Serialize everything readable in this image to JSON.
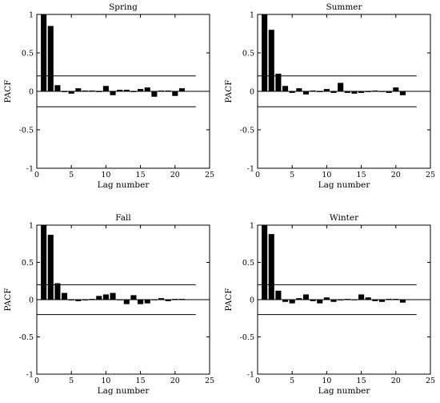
{
  "chart_data": [
    {
      "type": "bar",
      "title": "Spring",
      "xlabel": "Lag number",
      "ylabel": "PACF",
      "xlim": [
        0,
        25
      ],
      "ylim": [
        -1,
        1
      ],
      "xticks": [
        "0",
        "5",
        "10",
        "15",
        "20",
        "25"
      ],
      "yticks": [
        "1",
        "0.5",
        "0",
        "-0.5",
        "-1"
      ],
      "confidence_band": [
        0.2,
        -0.2
      ],
      "lags": [
        1,
        2,
        3,
        4,
        5,
        6,
        7,
        8,
        9,
        10,
        11,
        12,
        13,
        14,
        15,
        16,
        17,
        18,
        19,
        20,
        21
      ],
      "values": [
        1.0,
        0.85,
        0.08,
        -0.01,
        -0.03,
        0.04,
        0.01,
        0.01,
        -0.01,
        0.07,
        -0.05,
        0.02,
        0.02,
        -0.01,
        0.03,
        0.05,
        -0.07,
        0.01,
        0.01,
        -0.06,
        0.04
      ]
    },
    {
      "type": "bar",
      "title": "Summer",
      "xlabel": "Lag number",
      "ylabel": "PACF",
      "xlim": [
        0,
        25
      ],
      "ylim": [
        -1,
        1
      ],
      "xticks": [
        "0",
        "5",
        "10",
        "15",
        "20",
        "25"
      ],
      "yticks": [
        "1",
        "0.5",
        "0",
        "-0.5",
        "-1"
      ],
      "confidence_band": [
        0.2,
        -0.2
      ],
      "lags": [
        1,
        2,
        3,
        4,
        5,
        6,
        7,
        8,
        9,
        10,
        11,
        12,
        13,
        14,
        15,
        16,
        17,
        18,
        19,
        20,
        21
      ],
      "values": [
        1.0,
        0.8,
        0.23,
        0.07,
        -0.02,
        0.04,
        -0.04,
        0.01,
        -0.01,
        0.03,
        -0.02,
        0.11,
        -0.02,
        -0.03,
        -0.02,
        -0.01,
        0.01,
        0.0,
        -0.02,
        0.05,
        -0.05
      ]
    },
    {
      "type": "bar",
      "title": "Fall",
      "xlabel": "Lag number",
      "ylabel": "PACF",
      "xlim": [
        0,
        25
      ],
      "ylim": [
        -1,
        1
      ],
      "xticks": [
        "0",
        "5",
        "10",
        "15",
        "20",
        "25"
      ],
      "yticks": [
        "1",
        "0.5",
        "0",
        "-0.5",
        "-1"
      ],
      "confidence_band": [
        0.2,
        -0.2
      ],
      "lags": [
        1,
        2,
        3,
        4,
        5,
        6,
        7,
        8,
        9,
        10,
        11,
        12,
        13,
        14,
        15,
        16,
        17,
        18,
        19,
        20,
        21
      ],
      "values": [
        1.0,
        0.87,
        0.22,
        0.09,
        -0.01,
        -0.02,
        -0.01,
        0.01,
        0.05,
        0.07,
        0.09,
        0.0,
        -0.06,
        0.06,
        -0.06,
        -0.05,
        0.0,
        0.02,
        -0.02,
        0.01,
        0.01
      ]
    },
    {
      "type": "bar",
      "title": "Winter",
      "xlabel": "Lag number",
      "ylabel": "PACF",
      "xlim": [
        0,
        25
      ],
      "ylim": [
        -1,
        1
      ],
      "xticks": [
        "0",
        "5",
        "10",
        "15",
        "20",
        "25"
      ],
      "yticks": [
        "1",
        "0.5",
        "0",
        "-0.5",
        "-1"
      ],
      "confidence_band": [
        0.2,
        -0.2
      ],
      "lags": [
        1,
        2,
        3,
        4,
        5,
        6,
        7,
        8,
        9,
        10,
        11,
        12,
        13,
        14,
        15,
        16,
        17,
        18,
        19,
        20,
        21
      ],
      "values": [
        1.0,
        0.88,
        0.12,
        -0.03,
        -0.05,
        0.02,
        0.07,
        -0.02,
        -0.05,
        0.03,
        -0.03,
        -0.01,
        0.01,
        0.0,
        0.07,
        0.03,
        -0.02,
        -0.03,
        0.01,
        0.01,
        -0.04
      ]
    }
  ]
}
